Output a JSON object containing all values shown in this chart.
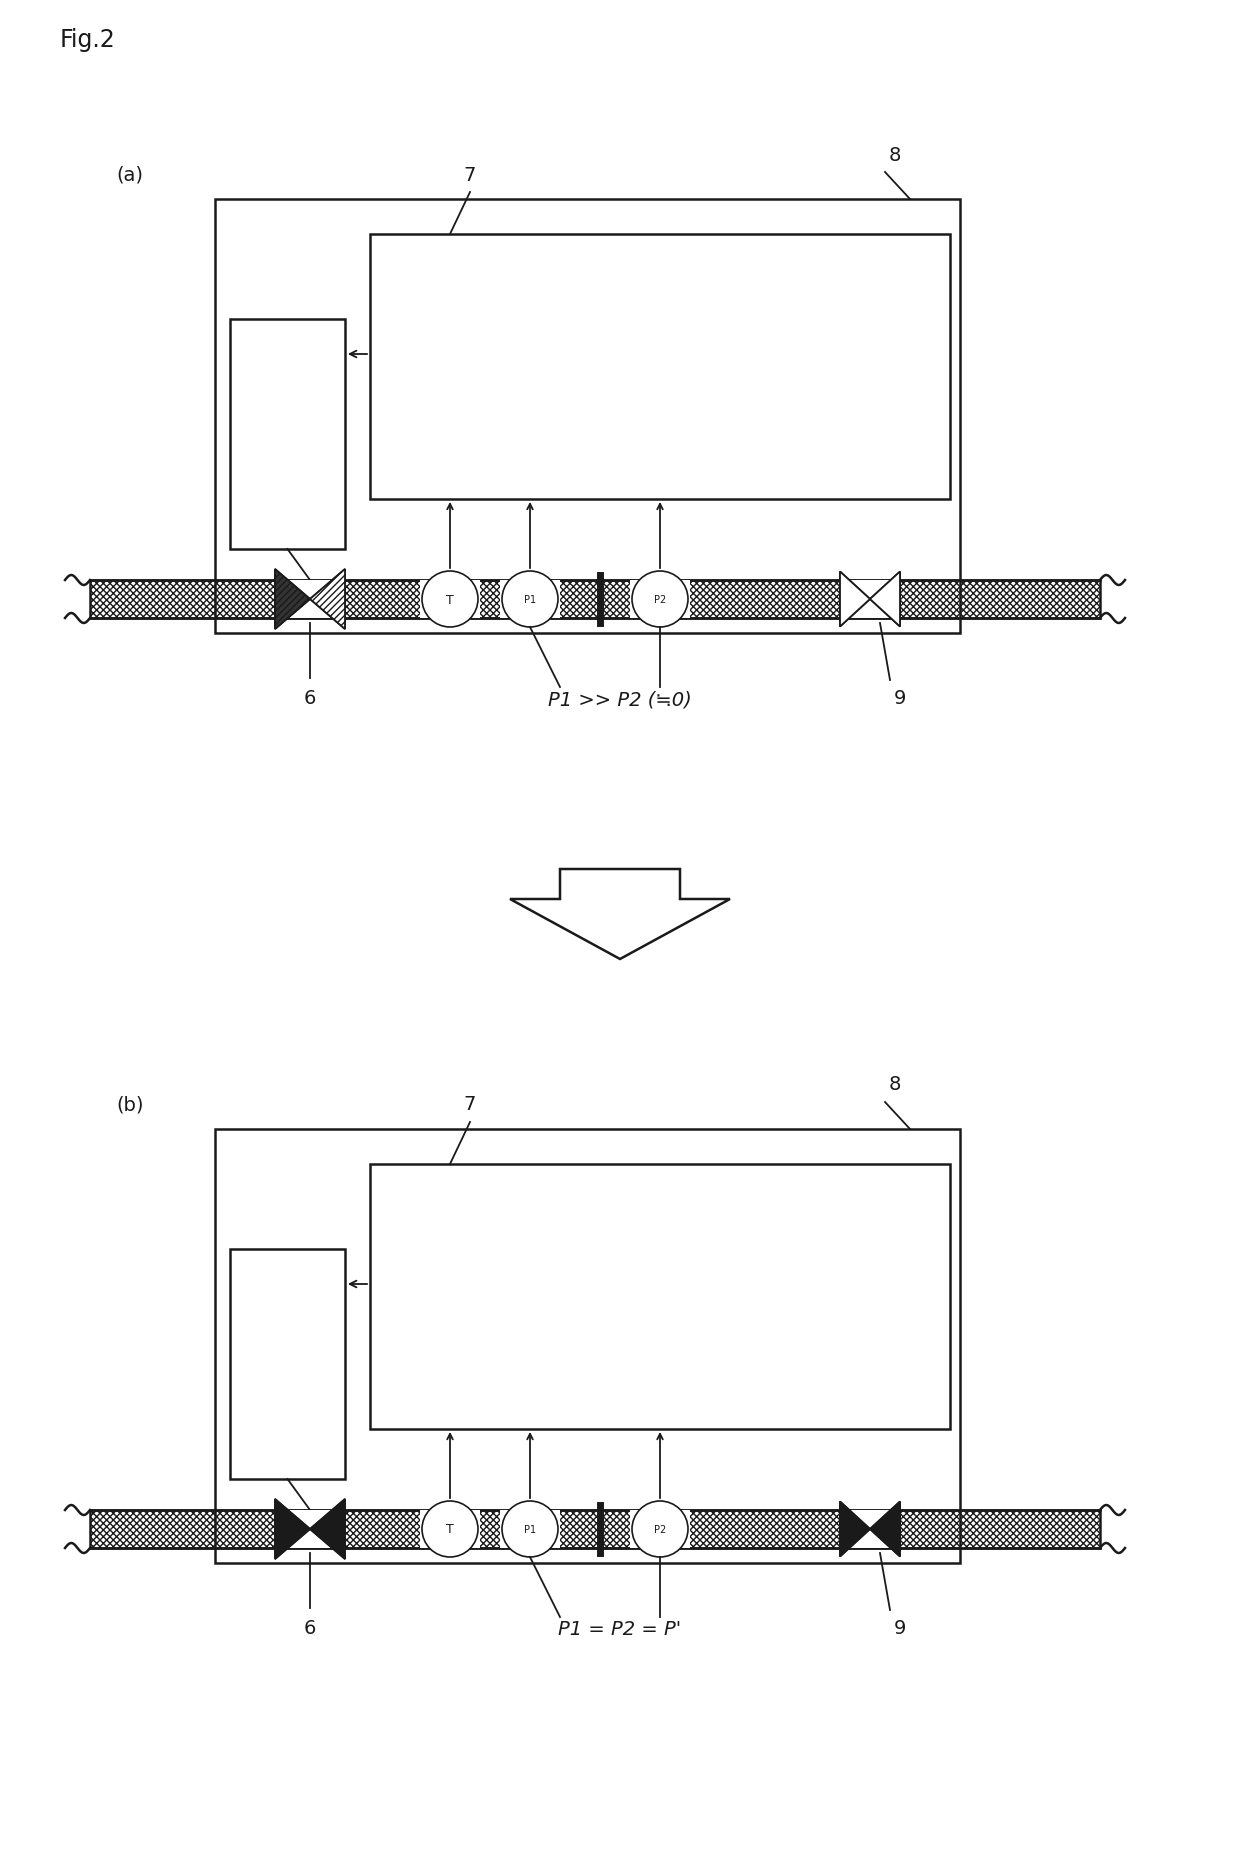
{
  "fig_label": "Fig.2",
  "bg_color": "#ffffff",
  "line_color": "#1a1a1a",
  "panel_a_label": "(a)",
  "panel_b_label": "(b)",
  "eq_a": "P1 >> P2 (≒0)",
  "eq_b": "P1 = P2 = P'",
  "label_6": "6",
  "label_7": "7",
  "label_8": "8",
  "label_9": "9"
}
